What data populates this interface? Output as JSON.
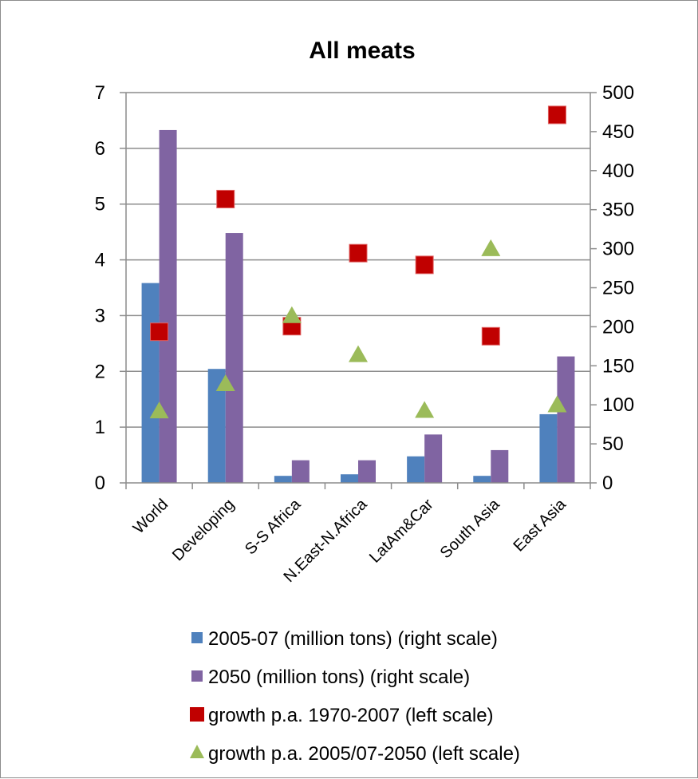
{
  "chart_data": {
    "type": "bar",
    "title": "All meats",
    "categories": [
      "World",
      "Developing",
      "S-S Africa",
      "N.East-N.Africa",
      "LatAm&Car",
      "South Asia",
      "East Asia"
    ],
    "right_axis": {
      "ylim": [
        0,
        500
      ],
      "ticks": [
        "0",
        "50",
        "100",
        "150",
        "200",
        "250",
        "300",
        "350",
        "400",
        "450",
        "500"
      ]
    },
    "left_axis": {
      "ylim": [
        0,
        7
      ],
      "ticks": [
        "0",
        "1",
        "2",
        "3",
        "4",
        "5",
        "6",
        "7"
      ]
    },
    "series": [
      {
        "name": "2005-07 (million tons) (right scale)",
        "kind": "bar",
        "axis": "right",
        "color": "#4f81bd",
        "values": [
          256,
          146,
          9,
          11,
          34,
          9,
          88
        ]
      },
      {
        "name": "2050 (million tons) (right scale)",
        "kind": "bar",
        "axis": "right",
        "color": "#8064a2",
        "values": [
          452,
          320,
          29,
          29,
          62,
          42,
          162
        ]
      },
      {
        "name": "growth p.a. 1970-2007 (left scale)",
        "kind": "square",
        "axis": "left",
        "color": "#c00000",
        "values": [
          2.71,
          5.09,
          2.81,
          4.12,
          3.91,
          2.63,
          6.6
        ]
      },
      {
        "name": "growth p.a. 2005/07-2050 (left scale)",
        "kind": "triangle",
        "axis": "left",
        "color": "#9bbb59",
        "values": [
          1.3,
          1.79,
          3.01,
          2.31,
          1.31,
          4.21,
          1.41
        ]
      }
    ],
    "grid": true,
    "legend_position": "bottom"
  }
}
